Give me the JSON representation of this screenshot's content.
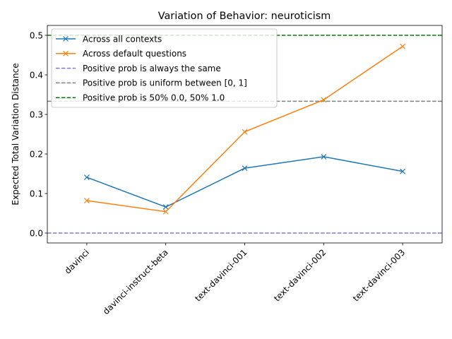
{
  "chart_data": {
    "type": "line",
    "title": "Variation of Behavior: neuroticism",
    "xlabel": "",
    "ylabel": "Expected Total Variation Distance",
    "categories": [
      "davinci",
      "davinci-instruct-beta",
      "text-davinci-001",
      "text-davinci-002",
      "text-davinci-003"
    ],
    "ylim": [
      -0.025,
      0.525
    ],
    "yticks": [
      0.0,
      0.1,
      0.2,
      0.3,
      0.4,
      0.5
    ],
    "ytick_labels": [
      "0.0",
      "0.1",
      "0.2",
      "0.3",
      "0.4",
      "0.5"
    ],
    "grid": false,
    "legend_position": "upper-left",
    "series": [
      {
        "name": "Across all contexts",
        "values": [
          0.141,
          0.066,
          0.164,
          0.193,
          0.156
        ],
        "color": "#1f77b4",
        "marker": "x"
      },
      {
        "name": "Across default questions",
        "values": [
          0.082,
          0.054,
          0.256,
          0.337,
          0.472
        ],
        "color": "#ff7f0e",
        "marker": "x"
      }
    ],
    "reference_lines": [
      {
        "name": "Positive prob is always the same",
        "y": 0.0,
        "color": "#7b7bdb"
      },
      {
        "name": "Positive prob is uniform between [0, 1]",
        "y": 0.3333,
        "color": "#808080"
      },
      {
        "name": "Positive prob is 50% 0.0, 50% 1.0",
        "y": 0.5,
        "color": "#008000"
      }
    ]
  }
}
